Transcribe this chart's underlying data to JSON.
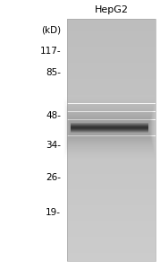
{
  "title": "HepG2",
  "kd_label": "(kD)",
  "markers": [
    117,
    85,
    48,
    34,
    26,
    19
  ],
  "outer_bg": "#ffffff",
  "gel_bg_light": 0.8,
  "gel_bg_dark": 0.74,
  "band_color_dark": 0.2,
  "title_fontsize": 8,
  "marker_fontsize": 7.5,
  "kd_fontsize": 7.5,
  "fig_width": 1.79,
  "fig_height": 3.0,
  "dpi": 100
}
